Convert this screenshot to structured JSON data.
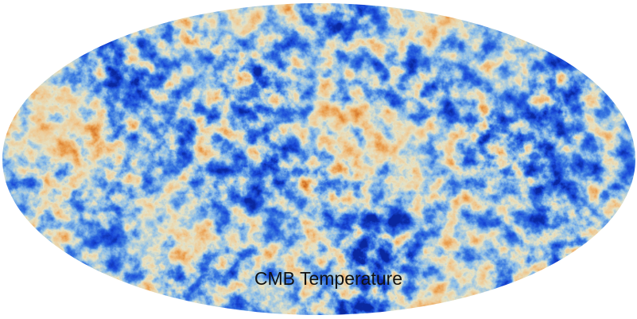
{
  "image": {
    "label": "CMB Temperature"
  }
}
